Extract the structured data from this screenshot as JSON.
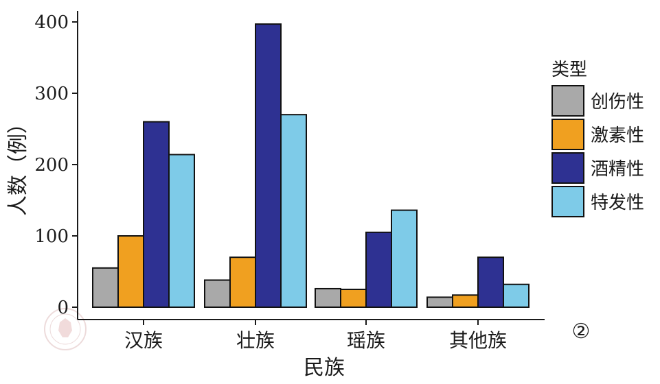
{
  "chart_data": {
    "type": "bar",
    "categories": [
      "汉族",
      "壮族",
      "瑶族",
      "其他族"
    ],
    "series": [
      {
        "name": "创伤性",
        "color": "#a9a9a9",
        "values": [
          55,
          38,
          26,
          14
        ]
      },
      {
        "name": "激素性",
        "color": "#f0a020",
        "values": [
          100,
          70,
          25,
          17
        ]
      },
      {
        "name": "酒精性",
        "color": "#2e3192",
        "values": [
          260,
          397,
          105,
          70
        ]
      },
      {
        "name": "特发性",
        "color": "#7ecbe8",
        "values": [
          214,
          270,
          136,
          32
        ]
      }
    ],
    "ylim": [
      0,
      400
    ],
    "yticks": [
      0,
      100,
      200,
      300,
      400
    ],
    "ytick_labels": [
      "0",
      "100",
      "200",
      "300",
      "400"
    ],
    "xlabel": "民族",
    "ylabel": "人数（例）",
    "legend_title": "类型",
    "legend_position": "right",
    "grid": false
  },
  "panel_marker": "②",
  "watermark_icon": "medical-society-logo-icon"
}
